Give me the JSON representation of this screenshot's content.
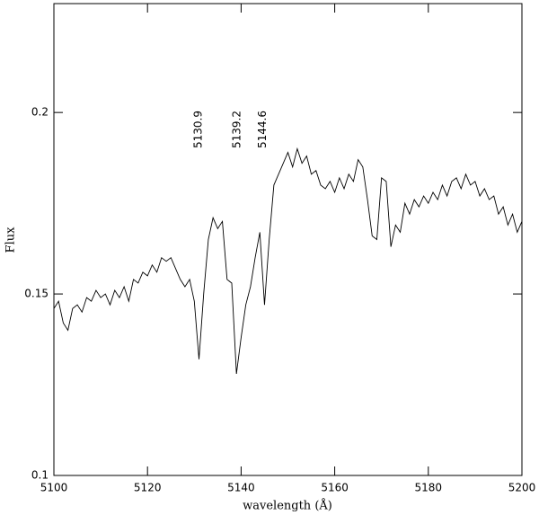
{
  "chart_data": {
    "type": "line",
    "xlabel": "wavelength (Å)",
    "ylabel": "Flux",
    "annotations": [
      "5130.9",
      "5139.2",
      "5144.6"
    ],
    "xlim": [
      5100,
      5200
    ],
    "xticks": [
      5100,
      5120,
      5140,
      5160,
      5180,
      5200
    ],
    "ylim": [
      0.1,
      0.23
    ],
    "yticks": [
      {
        "value": 0.1,
        "label": "0.1"
      },
      {
        "value": 0.15,
        "label": "0.15"
      },
      {
        "value": 0.2,
        "label": "0.2"
      }
    ],
    "color": "#000000",
    "x": [
      5100,
      5101,
      5102,
      5103,
      5104,
      5105,
      5106,
      5107,
      5108,
      5109,
      5110,
      5111,
      5112,
      5113,
      5114,
      5115,
      5116,
      5117,
      5118,
      5119,
      5120,
      5121,
      5122,
      5123,
      5124,
      5125,
      5126,
      5127,
      5128,
      5129,
      5130,
      5131,
      5132,
      5133,
      5134,
      5135,
      5136,
      5137,
      5138,
      5139,
      5140,
      5141,
      5142,
      5143,
      5144,
      5145,
      5146,
      5147,
      5148,
      5149,
      5150,
      5151,
      5152,
      5153,
      5154,
      5155,
      5156,
      5157,
      5158,
      5159,
      5160,
      5161,
      5162,
      5163,
      5164,
      5165,
      5166,
      5167,
      5168,
      5169,
      5170,
      5171,
      5172,
      5173,
      5174,
      5175,
      5176,
      5177,
      5178,
      5179,
      5180,
      5181,
      5182,
      5183,
      5184,
      5185,
      5186,
      5187,
      5188,
      5189,
      5190,
      5191,
      5192,
      5193,
      5194,
      5195,
      5196,
      5197,
      5198,
      5199,
      5200
    ],
    "values": [
      0.146,
      0.148,
      0.142,
      0.14,
      0.146,
      0.147,
      0.145,
      0.149,
      0.148,
      0.151,
      0.149,
      0.15,
      0.147,
      0.151,
      0.149,
      0.152,
      0.148,
      0.154,
      0.153,
      0.156,
      0.155,
      0.158,
      0.156,
      0.16,
      0.159,
      0.16,
      0.157,
      0.154,
      0.152,
      0.154,
      0.148,
      0.132,
      0.15,
      0.165,
      0.171,
      0.168,
      0.17,
      0.154,
      0.153,
      0.128,
      0.138,
      0.147,
      0.152,
      0.16,
      0.167,
      0.147,
      0.165,
      0.18,
      0.183,
      0.186,
      0.189,
      0.185,
      0.19,
      0.186,
      0.188,
      0.183,
      0.184,
      0.18,
      0.179,
      0.181,
      0.178,
      0.182,
      0.179,
      0.183,
      0.181,
      0.187,
      0.185,
      0.176,
      0.166,
      0.165,
      0.182,
      0.181,
      0.163,
      0.169,
      0.167,
      0.175,
      0.172,
      0.176,
      0.174,
      0.177,
      0.175,
      0.178,
      0.176,
      0.18,
      0.177,
      0.181,
      0.182,
      0.179,
      0.183,
      0.18,
      0.181,
      0.177,
      0.179,
      0.176,
      0.177,
      0.172,
      0.174,
      0.169,
      0.172,
      0.167,
      0.17
    ]
  }
}
